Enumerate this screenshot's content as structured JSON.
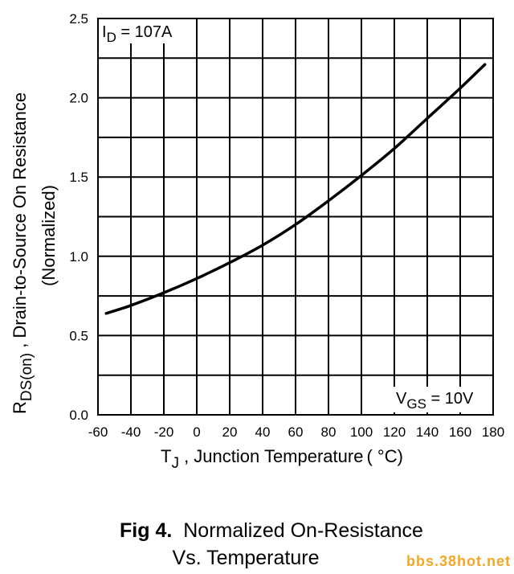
{
  "chart_data": {
    "type": "line",
    "xlabel_main": "T",
    "xlabel_sub": "J",
    "xlabel_rest": " , Junction Temperature",
    "xlabel_unit": "( °C)",
    "ylabel_main": "R",
    "ylabel_sub": "DS(on)",
    "ylabel_rest": " , Drain-to-Source On Resistance",
    "ylabel_line2": "(Normalized)",
    "xlim": [
      -60,
      180
    ],
    "ylim": [
      0.0,
      2.5
    ],
    "x_ticks": [
      "-60",
      "-40",
      "-20",
      "0",
      "20",
      "40",
      "60",
      "80",
      "100",
      "120",
      "140",
      "160",
      "180"
    ],
    "y_ticks": [
      "0.0",
      "0.5",
      "1.0",
      "1.5",
      "2.0",
      "2.5"
    ],
    "grid": true,
    "series": [
      {
        "x": [
          -55,
          -40,
          -20,
          0,
          20,
          40,
          60,
          80,
          100,
          120,
          140,
          160,
          175
        ],
        "y": [
          0.64,
          0.69,
          0.77,
          0.86,
          0.96,
          1.07,
          1.2,
          1.35,
          1.51,
          1.68,
          1.87,
          2.06,
          2.21
        ]
      }
    ],
    "annotations": {
      "id_main": "I",
      "id_sub": "D",
      "id_value": " = 107A",
      "vgs_main": "V",
      "vgs_sub": "GS",
      "vgs_value": " = 10V"
    }
  },
  "caption": {
    "fig_label": "Fig 4.",
    "line1": "Normalized On-Resistance",
    "line2": "Vs. Temperature"
  },
  "watermark": "bbs.38hot.net"
}
